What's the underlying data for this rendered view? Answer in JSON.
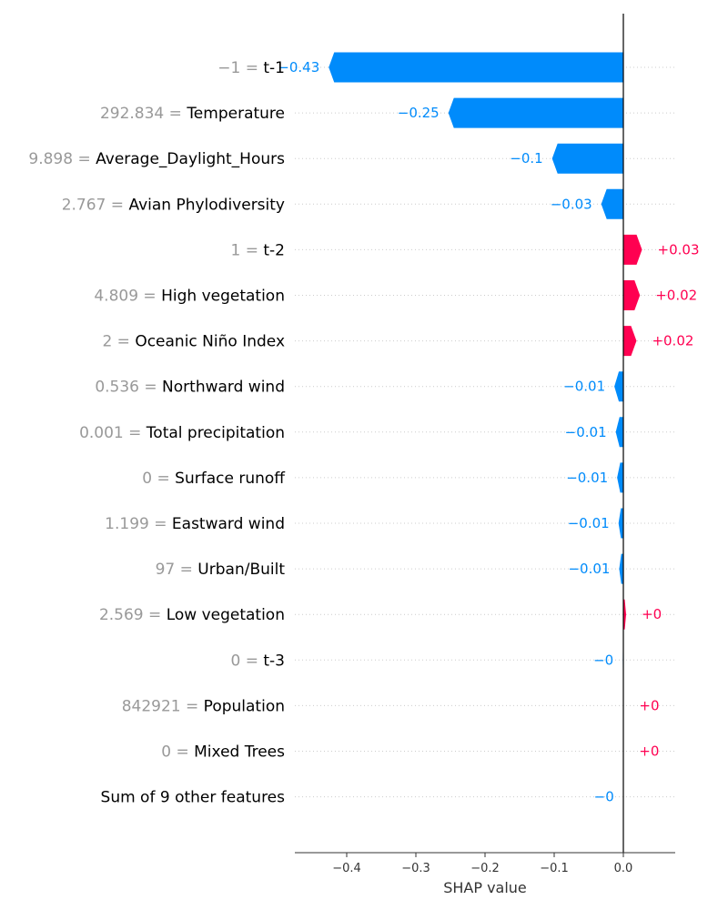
{
  "chart_data": {
    "type": "bar",
    "orientation": "horizontal",
    "title": "",
    "xlabel": "SHAP value",
    "ylabel": "",
    "xlim": [
      -0.475,
      0.075
    ],
    "xticks": [
      -0.4,
      -0.3,
      -0.2,
      -0.1,
      0.0
    ],
    "xtick_labels": [
      "−0.4",
      "−0.3",
      "−0.2",
      "−0.1",
      "0.0"
    ],
    "grid": "dotted row guides",
    "colors": {
      "positive": "#ff0051",
      "negative": "#008bfb",
      "feature_value": "#999999",
      "feature_name": "#000000"
    },
    "features": [
      {
        "value_text": "−1 = ",
        "name": "t-1",
        "shap": -0.426,
        "label": "−0.43"
      },
      {
        "value_text": "292.834 = ",
        "name": "Temperature",
        "shap": -0.253,
        "label": "−0.25"
      },
      {
        "value_text": "9.898 = ",
        "name": "Average_Daylight_Hours",
        "shap": -0.103,
        "label": "−0.1"
      },
      {
        "value_text": "2.767 = ",
        "name": "Avian Phylodiversity",
        "shap": -0.032,
        "label": "−0.03"
      },
      {
        "value_text": "1 = ",
        "name": "t-2",
        "shap": 0.027,
        "label": "+0.03"
      },
      {
        "value_text": "4.809 = ",
        "name": "High vegetation",
        "shap": 0.024,
        "label": "+0.02"
      },
      {
        "value_text": "2 = ",
        "name": "Oceanic Niño Index",
        "shap": 0.019,
        "label": "+0.02"
      },
      {
        "value_text": "0.536 = ",
        "name": "Northward wind",
        "shap": -0.013,
        "label": "−0.01"
      },
      {
        "value_text": "0.001 = ",
        "name": "Total precipitation",
        "shap": -0.011,
        "label": "−0.01"
      },
      {
        "value_text": "0 = ",
        "name": "Surface runoff",
        "shap": -0.009,
        "label": "−0.01"
      },
      {
        "value_text": "1.199 = ",
        "name": "Eastward wind",
        "shap": -0.007,
        "label": "−0.01"
      },
      {
        "value_text": "97 = ",
        "name": "Urban/Built",
        "shap": -0.006,
        "label": "−0.01"
      },
      {
        "value_text": "2.569 = ",
        "name": "Low vegetation",
        "shap": 0.004,
        "label": "+0"
      },
      {
        "value_text": "0 = ",
        "name": "t-3",
        "shap": -0.001,
        "label": "−0"
      },
      {
        "value_text": "842921 = ",
        "name": "Population",
        "shap": 0.0005,
        "label": "+0"
      },
      {
        "value_text": "0 = ",
        "name": "Mixed Trees",
        "shap": 0.0004,
        "label": "+0"
      },
      {
        "value_text": "",
        "name": "Sum of 9 other features",
        "shap": -0.0003,
        "label": "−0"
      }
    ]
  }
}
